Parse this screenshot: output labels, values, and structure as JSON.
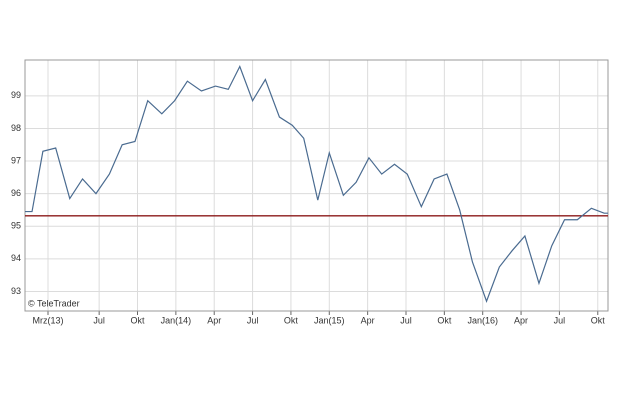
{
  "chart_data": {
    "type": "line",
    "watermark": "© TeleTrader",
    "x": [
      0.2,
      0.75,
      1.6,
      2.6,
      3.7,
      4.7,
      5.75,
      6.8,
      7.8,
      8.8,
      9.8,
      10.9,
      11.9,
      12.9,
      14.0,
      15.1,
      16.1,
      17.0,
      18.0,
      19.0,
      20.1,
      21.1,
      22.0,
      23.1,
      24.0,
      25.1,
      26.1,
      27.1,
      28.1,
      29.1,
      30.1,
      31.2,
      32.2,
      33.2,
      34.2,
      35.2,
      36.3,
      37.3,
      38.3,
      39.3,
      40.4,
      41.4,
      42.4,
      43.4,
      44.5,
      45.5,
      45.8
    ],
    "series": [
      {
        "color": "#4a6b90",
        "values": [
          95.45,
          95.45,
          97.3,
          97.4,
          95.85,
          96.45,
          96.0,
          96.6,
          97.5,
          97.6,
          98.85,
          98.45,
          98.85,
          99.45,
          99.15,
          99.3,
          99.2,
          99.9,
          98.85,
          99.5,
          98.35,
          98.1,
          97.7,
          95.8,
          97.25,
          95.95,
          96.35,
          97.1,
          96.6,
          96.9,
          96.6,
          95.6,
          96.45,
          96.6,
          95.5,
          93.9,
          92.7,
          93.75,
          94.25,
          94.7,
          93.25,
          94.4,
          95.2,
          95.2,
          95.55,
          95.4,
          95.4
        ]
      }
    ],
    "reference_line": {
      "value": 95.32,
      "color": "#8b1a1a"
    },
    "xlim": [
      0.2,
      45.8
    ],
    "xticks": [
      {
        "value": 2,
        "label": "Mrz(13)"
      },
      {
        "value": 6,
        "label": "Jul"
      },
      {
        "value": 9,
        "label": "Okt"
      },
      {
        "value": 12,
        "label": "Jan(14)"
      },
      {
        "value": 15,
        "label": "Apr"
      },
      {
        "value": 18,
        "label": "Jul"
      },
      {
        "value": 21,
        "label": "Okt"
      },
      {
        "value": 24,
        "label": "Jan(15)"
      },
      {
        "value": 27,
        "label": "Apr"
      },
      {
        "value": 30,
        "label": "Jul"
      },
      {
        "value": 33,
        "label": "Okt"
      },
      {
        "value": 36,
        "label": "Jan(16)"
      },
      {
        "value": 39,
        "label": "Apr"
      },
      {
        "value": 42,
        "label": "Jul"
      },
      {
        "value": 45,
        "label": "Okt"
      }
    ],
    "ylim": [
      92.4,
      100.1
    ],
    "yticks": [
      93,
      94,
      95,
      96,
      97,
      98,
      99
    ],
    "grid": true
  }
}
